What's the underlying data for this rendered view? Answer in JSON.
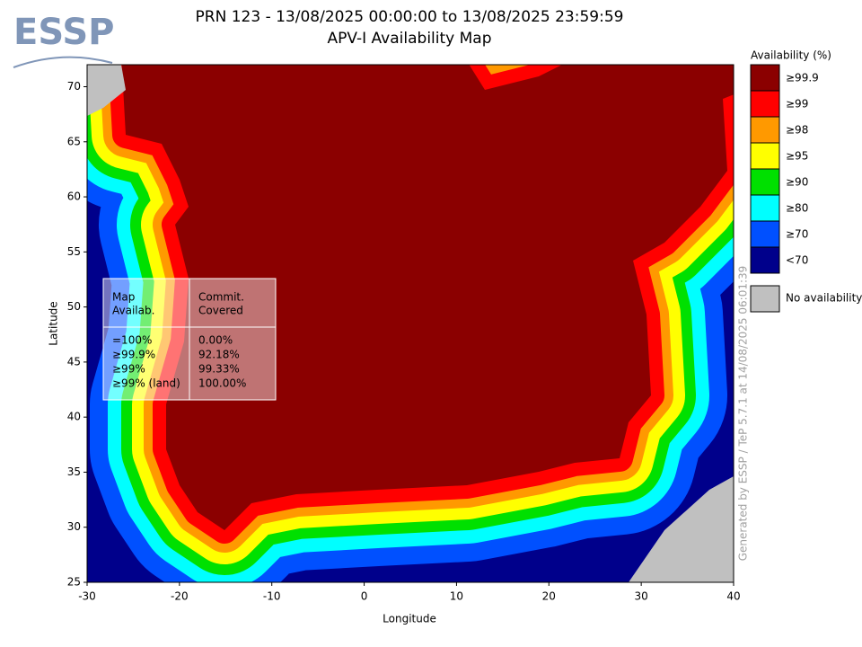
{
  "logo": "ESSP",
  "chart_data": {
    "type": "map",
    "title": "PRN 123 - 13/08/2025 00:00:00 to 13/08/2025 23:59:59",
    "subtitle": "APV-I Availability Map",
    "x_label": "Longitude",
    "y_label": "Latitude",
    "xlim": [
      -30,
      40
    ],
    "ylim": [
      25,
      72
    ],
    "xticks": [
      -30,
      -20,
      -10,
      0,
      10,
      20,
      30,
      40
    ],
    "yticks": [
      25,
      30,
      35,
      40,
      45,
      50,
      55,
      60,
      65,
      70
    ],
    "legend": {
      "title": "Availability (%)",
      "entries": [
        {
          "label": "≥99.9",
          "color": "#8b0000"
        },
        {
          "label": "≥99",
          "color": "#ff0000"
        },
        {
          "label": "≥98",
          "color": "#ff9900"
        },
        {
          "label": "≥95",
          "color": "#ffff00"
        },
        {
          "label": "≥90",
          "color": "#00e000"
        },
        {
          "label": "≥80",
          "color": "#00ffff"
        },
        {
          "label": "≥70",
          "color": "#0050ff"
        },
        {
          "label": "<70",
          "color": "#00008b"
        }
      ],
      "no_data": {
        "label": "No availability",
        "color": "#c0c0c0"
      }
    },
    "table": {
      "headers": [
        [
          "Map",
          "Availab."
        ],
        [
          "Commit.",
          "Covered"
        ]
      ],
      "rows": [
        [
          "=100%",
          "0.00%"
        ],
        [
          "≥99.9%",
          "92.18%"
        ],
        [
          "≥99%",
          "99.33%"
        ],
        [
          "≥99% (land)",
          "100.00%"
        ]
      ]
    },
    "footer": "Generated by ESSP / TeP 5.7.1 at 14/08/2025 06:01:39"
  }
}
